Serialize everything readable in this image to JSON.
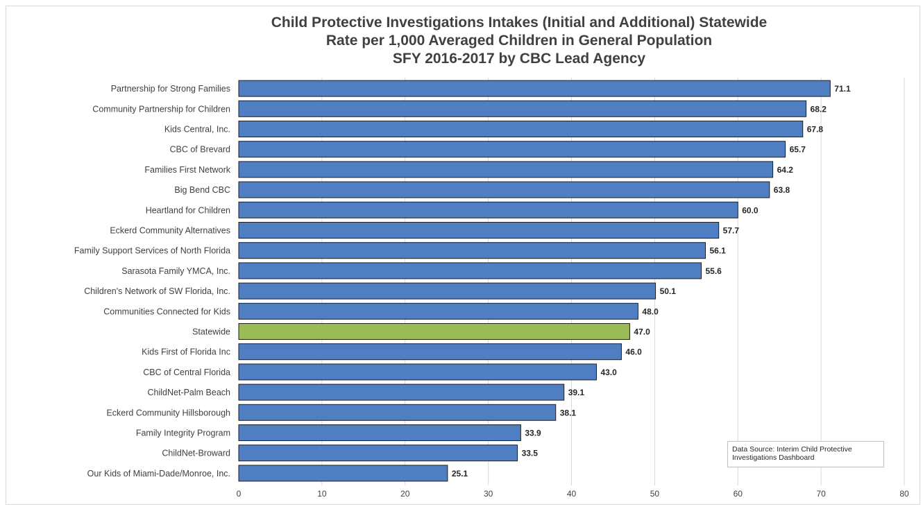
{
  "chart_data": {
    "type": "bar",
    "orientation": "horizontal",
    "title": [
      "Child Protective Investigations Intakes (Initial and Additional) Statewide",
      "Rate per 1,000 Averaged Children in General Population",
      "SFY 2016-2017 by CBC Lead Agency"
    ],
    "categories": [
      "Partnership for Strong Families",
      "Community Partnership for Children",
      "Kids Central, Inc.",
      "CBC of Brevard",
      "Families First Network",
      "Big Bend CBC",
      "Heartland for Children",
      "Eckerd Community Alternatives",
      "Family Support Services of North Florida",
      "Sarasota Family YMCA, Inc.",
      "Children's Network of SW Florida, Inc.",
      "Communities Connected for Kids",
      "Statewide",
      "Kids First of Florida Inc",
      "CBC of Central Florida",
      "ChildNet-Palm Beach",
      "Eckerd Community Hillsborough",
      "Family Integrity Program",
      "ChildNet-Broward",
      "Our Kids of Miami-Dade/Monroe, Inc."
    ],
    "values": [
      71.1,
      68.2,
      67.8,
      65.7,
      64.2,
      63.8,
      60.0,
      57.7,
      56.1,
      55.6,
      50.1,
      48.0,
      47.0,
      46.0,
      43.0,
      39.1,
      38.1,
      33.9,
      33.5,
      25.1
    ],
    "value_labels": [
      "71.1",
      "68.2",
      "67.8",
      "65.7",
      "64.2",
      "63.8",
      "60.0",
      "57.7",
      "56.1",
      "55.6",
      "50.1",
      "48.0",
      "47.0",
      "46.0",
      "43.0",
      "39.1",
      "38.1",
      "33.9",
      "33.5",
      "25.1"
    ],
    "highlight_category": "Statewide",
    "xlim": [
      0,
      80
    ],
    "xticks": [
      0,
      10,
      20,
      30,
      40,
      50,
      60,
      70,
      80
    ],
    "grid": true,
    "xlabel": "",
    "ylabel": "",
    "colors": {
      "bar": "#4f7ec2",
      "bar_highlight": "#9bbb59",
      "bar_border": "#1f1f1f",
      "grid": "#d9d9d9"
    },
    "annotation": "Data Source: Interim Child Protective Investigations Dashboard"
  }
}
